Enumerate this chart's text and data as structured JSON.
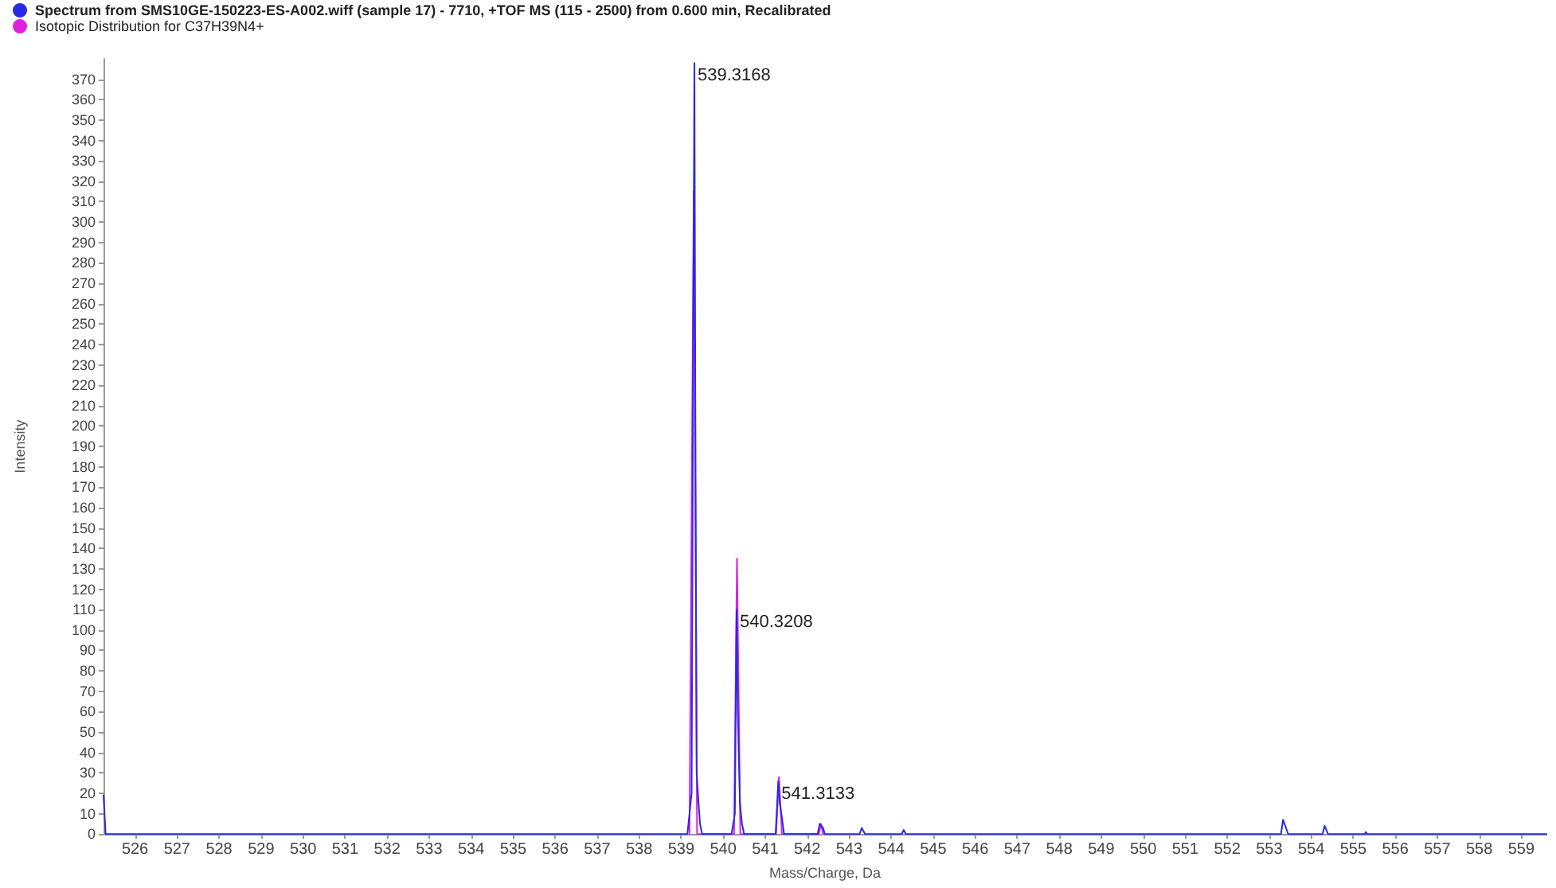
{
  "chart_data": {
    "type": "line",
    "xlabel": "Mass/Charge, Da",
    "ylabel": "Intensity",
    "xlim": [
      525.25,
      559.6
    ],
    "xticks": [
      526,
      527,
      528,
      529,
      530,
      531,
      532,
      533,
      534,
      535,
      536,
      537,
      538,
      539,
      540,
      541,
      542,
      543,
      544,
      545,
      546,
      547,
      548,
      549,
      550,
      551,
      552,
      553,
      554,
      555,
      556,
      557,
      558,
      559
    ],
    "ylim": [
      0,
      380
    ],
    "yticks": [
      0,
      10,
      20,
      30,
      40,
      50,
      60,
      70,
      80,
      90,
      100,
      110,
      120,
      130,
      140,
      150,
      160,
      170,
      180,
      190,
      200,
      210,
      220,
      230,
      240,
      250,
      260,
      270,
      280,
      290,
      300,
      310,
      320,
      330,
      340,
      350,
      360,
      370
    ],
    "grid": false,
    "legend": "top left",
    "marker": "none",
    "line_style": "solid",
    "series": [
      {
        "name": "Spectrum from SMS10GE-150223-ES-A002.wiff (sample 17) - 7710, +TOF MS (115 - 2500) from 0.600 min, Recalibrated",
        "color": "#2a2ae6",
        "x": [
          525.25,
          525.3,
          539.15,
          539.25,
          539.29,
          539.3168,
          539.34,
          539.37,
          539.4,
          539.45,
          539.5,
          540.2,
          540.28,
          540.3208,
          540.35,
          540.4,
          540.45,
          540.5,
          541.25,
          541.3133,
          541.35,
          541.4,
          541.45,
          542.25,
          542.3,
          542.38,
          542.42,
          543.25,
          543.3,
          543.38,
          544.25,
          544.3,
          544.35,
          553.28,
          553.33,
          553.4,
          553.45,
          554.27,
          554.32,
          554.4,
          555.28,
          555.3,
          555.33,
          559.6
        ],
        "values": [
          19,
          0,
          0,
          20,
          250,
          378,
          200,
          30,
          20,
          5,
          0,
          0,
          10,
          110,
          60,
          15,
          5,
          0,
          0,
          26,
          15,
          8,
          0,
          0,
          5,
          3,
          0,
          0,
          3,
          0,
          0,
          2,
          0,
          0,
          7,
          3,
          0,
          0,
          4,
          0,
          0,
          1,
          0,
          0
        ]
      },
      {
        "name": "Isotopic Distribution for C37H39N4+",
        "color": "#e020e0",
        "x": [
          539.2,
          539.3,
          539.38,
          540.26,
          540.33,
          540.41,
          541.26,
          541.33,
          541.4,
          542.28,
          542.33,
          542.38
        ],
        "values": [
          0,
          315,
          0,
          0,
          135,
          0,
          0,
          28,
          0,
          0,
          5,
          0
        ]
      }
    ],
    "annotations": [
      {
        "text": "539.3168",
        "x": 539.3168,
        "y": 378
      },
      {
        "text": "540.3208",
        "x": 540.3208,
        "y": 110
      },
      {
        "text": "541.3133",
        "x": 541.3133,
        "y": 26
      }
    ]
  }
}
